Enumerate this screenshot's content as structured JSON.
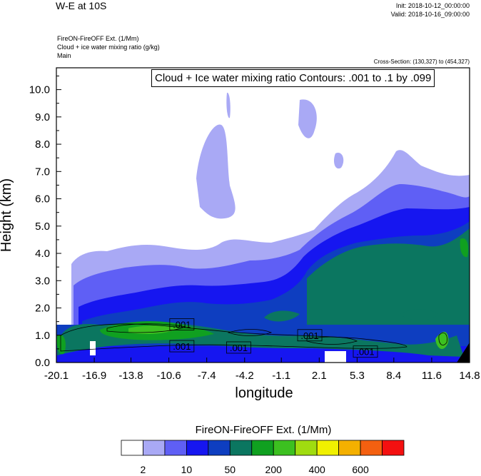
{
  "header": {
    "title": "W-E at 10S",
    "init": "Init: 2018-10-12_00:00:00",
    "valid": "Valid: 2018-10-16_09:00:00",
    "fields": [
      "FireON-FireOFF Ext.   (1/Mm)",
      "Cloud + ice water mixing ratio   (g/kg)",
      "Main"
    ],
    "cross_section": "Cross-Section: (130,327) to (454,327)"
  },
  "chart_data": {
    "type": "heatmap",
    "title": "W-E at 10S",
    "xlabel": "longitude",
    "ylabel": "Height (km)",
    "xlim": [
      -20.1,
      14.8
    ],
    "ylim": [
      0.0,
      10.8
    ],
    "x_ticks": [
      "-20.1",
      "-16.9",
      "-13.8",
      "-10.6",
      "-7.4",
      "-4.2",
      "-1.1",
      "2.1",
      "5.3",
      "8.4",
      "11.6",
      "14.8"
    ],
    "y_ticks": [
      "0.0",
      "1.0",
      "2.0",
      "3.0",
      "4.0",
      "5.0",
      "6.0",
      "7.0",
      "8.0",
      "9.0",
      "10.0"
    ],
    "contour_annotation": "Cloud + Ice water mixing ratio Contours: .001 to .1 by .099",
    "contour_labels": [
      {
        "text": ".001",
        "x": -9.5,
        "y": 1.4
      },
      {
        "text": ".001",
        "x": -9.5,
        "y": 0.6
      },
      {
        "text": ".001",
        "x": -4.7,
        "y": 0.55
      },
      {
        "text": ".001",
        "x": 1.3,
        "y": 1.0
      },
      {
        "text": ".001",
        "x": 6.0,
        "y": 0.4
      }
    ],
    "colorbar": {
      "title": "FireON-FireOFF Ext.  (1/Mm)",
      "labels": [
        "2",
        "10",
        "50",
        "200",
        "400",
        "600"
      ],
      "colors": [
        "#ffffff",
        "#a9a9f5",
        "#5f5ff5",
        "#1616f0",
        "#0e3ec0",
        "#0b7660",
        "#10a020",
        "#3cc020",
        "#a0dc10",
        "#f0f000",
        "#f4b000",
        "#f46010",
        "#f41010"
      ]
    }
  }
}
